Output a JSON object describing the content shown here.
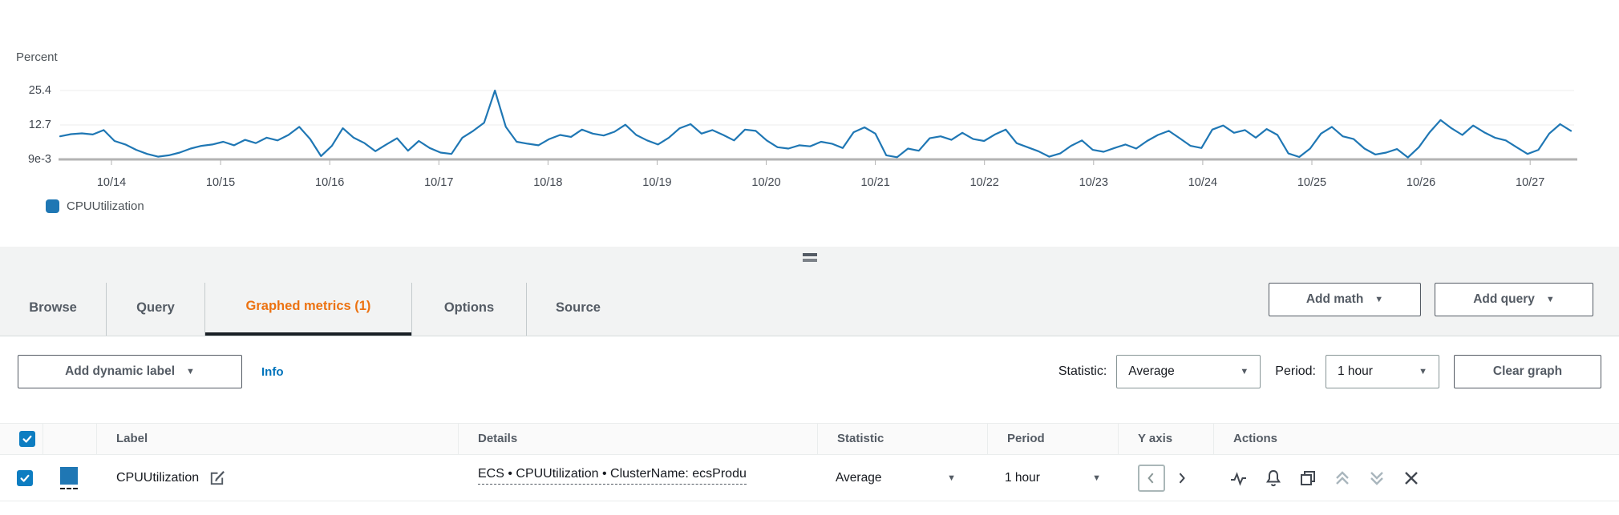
{
  "chart": {
    "unit_label": "Percent",
    "y_ticks": [
      "25.4",
      "12.7",
      "9e-3"
    ],
    "legend": [
      {
        "label": "CPUUtilization",
        "color": "#1f77b4"
      }
    ]
  },
  "chart_data": {
    "type": "line",
    "title": "",
    "ylabel": "Percent",
    "xlabel": "",
    "legend_position": "bottom-left",
    "grid": true,
    "ylim": [
      0,
      27
    ],
    "y_tick_values": [
      25.4,
      12.7,
      0.009
    ],
    "x_tick_labels": [
      "10/14",
      "10/15",
      "10/16",
      "10/17",
      "10/18",
      "10/19",
      "10/20",
      "10/21",
      "10/22",
      "10/23",
      "10/24",
      "10/25",
      "10/26",
      "10/27"
    ],
    "series": [
      {
        "name": "CPUUtilization",
        "color": "#1f77b4",
        "x_start_day": 13.53,
        "x_step_day": 0.0996,
        "values": [
          8.5,
          9.3,
          9.6,
          9.2,
          10.8,
          6.8,
          5.5,
          3.5,
          2.0,
          1.0,
          1.5,
          2.5,
          4.0,
          5.0,
          5.5,
          6.5,
          5.2,
          7.2,
          6.0,
          8.0,
          7.0,
          9.0,
          12.0,
          7.5,
          1.2,
          5.0,
          11.5,
          8.0,
          6.0,
          3.0,
          5.5,
          7.8,
          3.2,
          6.8,
          4.2,
          2.5,
          2.0,
          8.0,
          10.5,
          13.5,
          25.4,
          12.0,
          6.5,
          5.8,
          5.2,
          7.5,
          9.0,
          8.3,
          11.0,
          9.5,
          8.8,
          10.2,
          12.8,
          9.0,
          7.0,
          5.5,
          8.0,
          11.5,
          13.0,
          9.5,
          10.8,
          9.0,
          7.0,
          11.0,
          10.5,
          7.0,
          4.5,
          4.0,
          5.2,
          4.8,
          6.5,
          5.8,
          4.2,
          10.0,
          11.8,
          9.5,
          1.5,
          0.8,
          4.0,
          3.2,
          7.8,
          8.5,
          7.2,
          9.8,
          7.5,
          6.8,
          9.2,
          11.0,
          6.0,
          4.5,
          3.0,
          1.0,
          2.2,
          5.0,
          7.0,
          3.5,
          2.8,
          4.2,
          5.5,
          4.0,
          6.8,
          9.0,
          10.5,
          7.8,
          5.0,
          4.2,
          11.0,
          12.5,
          9.8,
          10.8,
          8.0,
          11.2,
          9.0,
          2.2,
          0.9,
          4.0,
          9.5,
          12.0,
          8.5,
          7.5,
          4.0,
          1.8,
          2.5,
          3.8,
          0.7,
          4.5,
          10.0,
          14.5,
          11.5,
          9.0,
          12.5,
          10.0,
          8.0,
          7.0,
          4.5,
          2.0,
          3.5,
          9.5,
          13.0,
          10.5
        ]
      }
    ]
  },
  "tabs": [
    {
      "label": "Browse",
      "active": false
    },
    {
      "label": "Query",
      "active": false
    },
    {
      "label": "Graphed metrics (1)",
      "active": true
    },
    {
      "label": "Options",
      "active": false
    },
    {
      "label": "Source",
      "active": false
    }
  ],
  "tab_actions": {
    "add_math": "Add math",
    "add_query": "Add query"
  },
  "toolbar": {
    "add_dynamic_label": "Add dynamic label",
    "info": "Info",
    "statistic_label": "Statistic:",
    "statistic_value": "Average",
    "period_label": "Period:",
    "period_value": "1 hour",
    "clear_graph": "Clear graph"
  },
  "table": {
    "headers": {
      "label": "Label",
      "details": "Details",
      "statistic": "Statistic",
      "period": "Period",
      "y_axis": "Y axis",
      "actions": "Actions"
    },
    "row": {
      "checked": true,
      "color": "#1f77b4",
      "label": "CPUUtilization",
      "details": "ECS • CPUUtilization • ClusterName: ecsProdu",
      "statistic": "Average",
      "period": "1 hour"
    }
  },
  "icons": {
    "caret_down": "▼"
  },
  "colors": {
    "accent_orange": "#ec7211",
    "link_blue": "#0073bb",
    "line_blue": "#1f77b4",
    "checkbox_blue": "#0d7dc1",
    "band_gray": "#f2f3f3"
  }
}
